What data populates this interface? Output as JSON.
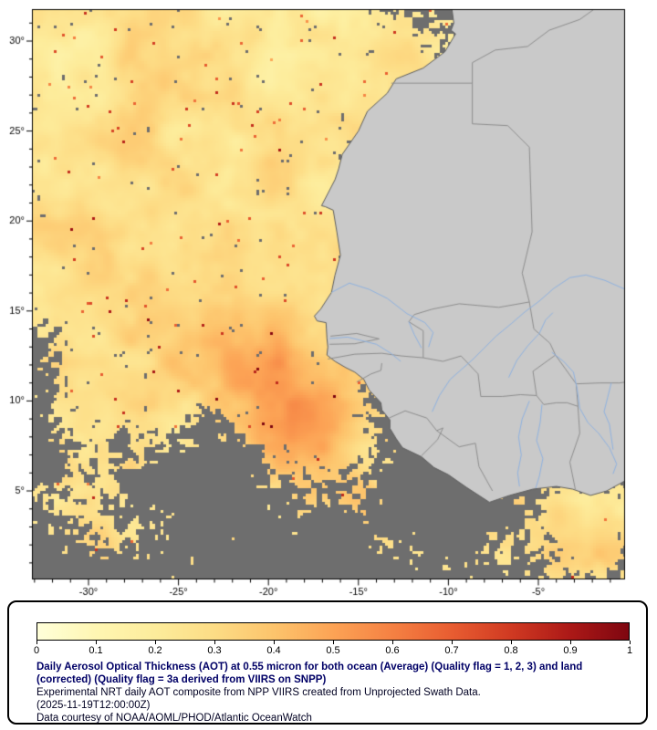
{
  "map": {
    "axes": {
      "lat_ticks": [
        {
          "value": 30,
          "label": "30°"
        },
        {
          "value": 25,
          "label": "25°"
        },
        {
          "value": 20,
          "label": "20°"
        },
        {
          "value": 15,
          "label": "15°"
        },
        {
          "value": 10,
          "label": "10°"
        },
        {
          "value": 5,
          "label": "5°"
        }
      ],
      "lon_ticks": [
        {
          "value": -30,
          "label": "-30°"
        },
        {
          "value": -25,
          "label": "-25°"
        },
        {
          "value": -20,
          "label": "-20°"
        },
        {
          "value": -15,
          "label": "-15°"
        },
        {
          "value": -10,
          "label": "-10°"
        },
        {
          "value": -5,
          "label": "-5°"
        }
      ]
    },
    "colors": {
      "no_data": "#6E6E6E",
      "land": "#C9C9C9",
      "coast": "#5F5F5F",
      "border": "#8E8E8E",
      "river": "#8FB2E0",
      "frame": "#000000"
    }
  },
  "colorbar": {
    "min": 0,
    "max": 1,
    "ticks": [
      "0",
      "0.1",
      "0.2",
      "0.3",
      "0.4",
      "0.5",
      "0.6",
      "0.7",
      "0.8",
      "0.9",
      "1"
    ],
    "stops": [
      "#FFFFD9",
      "#FEF6B2",
      "#FDEC9B",
      "#FDDC85",
      "#FDC46C",
      "#FCA355",
      "#F58143",
      "#E85D31",
      "#D03A22",
      "#AC1917",
      "#7E0610"
    ]
  },
  "caption": {
    "title": "Daily Aerosol Optical Thickness (AOT) at 0.55 micron for both ocean (Average) (Quality flag = 1, 2, 3) and land (corrected) (Quality flag = 3a derived from VIIRS on SNPP)",
    "line2": "Experimental NRT daily AOT composite from NPP VIIRS created from Unprojected Swath Data.",
    "line3": "(2025-11-19T12:00:00Z)",
    "line4": "Data courtesy of NOAA/AOML/PHOD/Atlantic OceanWatch"
  }
}
